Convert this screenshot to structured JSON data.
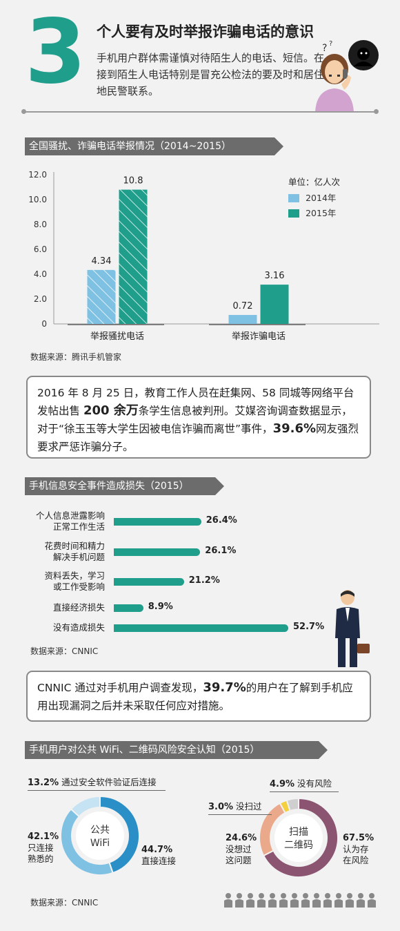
{
  "header": {
    "number": "3",
    "title": "个人要有及时举报诈骗电话的意识",
    "text": "手机用户群体需谨慎对待陌生人的电话、短信。在接到陌生人电话特别是冒充公检法的要及时和居住地民警联系。"
  },
  "colors": {
    "teal": "#1f9e8c",
    "light_blue": "#7fc1e3",
    "banner": "#6c6c6c",
    "purple": "#8b5471",
    "salmon": "#eba98c"
  },
  "section1": {
    "banner": "全国骚扰、诈骗电话举报情况（2014~2015）",
    "unit": "单位：亿人次",
    "source": "数据来源：腾讯手机管家"
  },
  "chart_data": [
    {
      "type": "bar",
      "title": "全国骚扰、诈骗电话举报情况（2014~2015）",
      "categories": [
        "举报骚扰电话",
        "举报诈骗电话"
      ],
      "series": [
        {
          "name": "2014年",
          "values": [
            4.34,
            0.72
          ],
          "labels": [
            "4.34",
            "0.72"
          ]
        },
        {
          "name": "2015年",
          "values": [
            10.8,
            3.16
          ],
          "labels": [
            "10.8",
            "3.16"
          ]
        }
      ],
      "yticks": [
        "0",
        "2.0",
        "4.0",
        "6.0",
        "8.0",
        "10.0",
        "12.0"
      ],
      "ylim": [
        0,
        12
      ],
      "legend": "top-right"
    },
    {
      "type": "bar",
      "orientation": "horizontal",
      "title": "手机信息安全事件造成损失（2015）",
      "categories": [
        "个人信息泄露影响正常工作生活",
        "花费时间和精力解决手机问题",
        "资料丢失，学习或工作受影响",
        "直接经济损失",
        "没有造成损失"
      ],
      "values": [
        26.4,
        26.1,
        21.2,
        8.9,
        52.7
      ],
      "value_labels": [
        "26.4%",
        "26.1%",
        "21.2%",
        "8.9%",
        "52.7%"
      ]
    },
    {
      "type": "pie",
      "title": "公共WiFi",
      "labels": [
        "直接连接",
        "只连接熟悉的",
        "通过安全软件验证后连接"
      ],
      "values": [
        44.7,
        42.1,
        13.2
      ]
    },
    {
      "type": "pie",
      "title": "扫描二维码",
      "labels": [
        "认为存在风险",
        "没想过这问题",
        "没扫过",
        "没有风险"
      ],
      "values": [
        67.5,
        24.6,
        3.0,
        4.9
      ]
    }
  ],
  "box1": {
    "p1": "2016 年 8 月 25 日，教育工作人员在赶集网、58 同城等网络平台发帖出售 ",
    "bold1": "200 余万",
    "p2": "条学生信息被判刑。艾媒咨询调查数据显示，对于“徐玉玉等大学生因被电信诈骗而离世”事件，",
    "bold2": "39.6%",
    "p3": "网友强烈要求严惩诈骗分子。"
  },
  "section2": {
    "banner": "手机信息安全事件造成损失（2015）",
    "labels": [
      [
        "个人信息泄露影响",
        "正常工作生活"
      ],
      [
        "花费时间和精力",
        "解决手机问题"
      ],
      [
        "资料丢失，学习",
        "或工作受影响"
      ],
      [
        "直接经济损失"
      ],
      [
        "没有造成损失"
      ]
    ],
    "source": "数据来源：CNNIC"
  },
  "box2": {
    "p1": "CNNIC 通过对手机用户调查发现，",
    "bold1": "39.7%",
    "p2": "的用户在了解到手机应用出现漏洞之后并未采取任何应对措施。"
  },
  "section3": {
    "banner": "手机用户对公共 WiFi、二维码风险安全认知（2015）",
    "wifi": {
      "center1": "公共",
      "center2": "WiFi",
      "a_pct": "13.2%",
      "a_txt": "通过安全软件验证后连接",
      "b_pct": "42.1%",
      "b_l1": "只连接",
      "b_l2": "熟悉的",
      "c_pct": "44.7%",
      "c_txt": "直接连接"
    },
    "qr": {
      "center1": "扫描",
      "center2": "二维码",
      "a_pct": "4.9%",
      "a_txt": "没有风险",
      "b_pct": "3.0%",
      "b_txt": "没扫过",
      "c_pct": "24.6%",
      "c_l1": "没想过",
      "c_l2": "这问题",
      "d_pct": "67.5%",
      "d_l1": "认为存",
      "d_l2": "在风险"
    },
    "source": "数据来源：CNNIC"
  }
}
